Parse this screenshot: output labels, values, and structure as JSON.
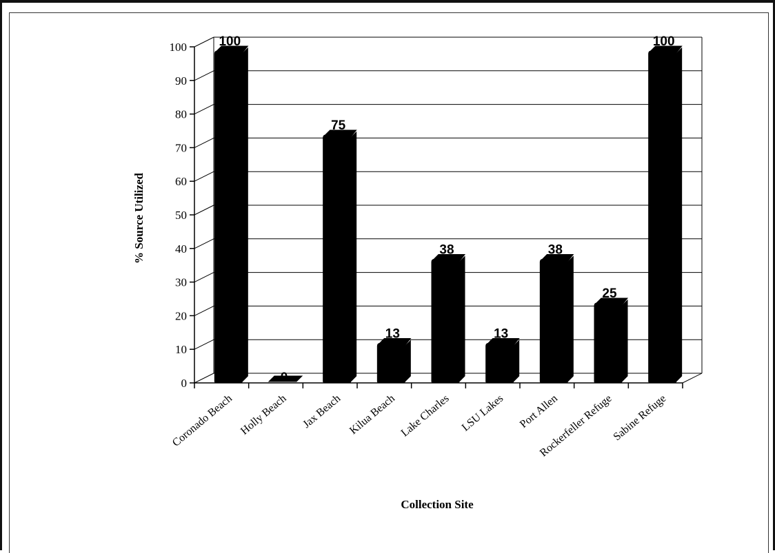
{
  "chart_data": {
    "type": "bar",
    "categories": [
      "Coronado Beach",
      "Holly Beach",
      "Jax Beach",
      "Kilua Beach",
      "Lake Charles",
      "LSU Lakes",
      "Port Allen",
      "Rockerfeller Refuge",
      "Sabine Refuge"
    ],
    "values": [
      100,
      0,
      75,
      13,
      38,
      13,
      38,
      25,
      100
    ],
    "xlabel": "Collection Site",
    "ylabel": "% Source Utilized",
    "ylim": [
      0,
      100
    ],
    "yticks": [
      0,
      10,
      20,
      30,
      40,
      50,
      60,
      70,
      80,
      90,
      100
    ],
    "grid": true,
    "style": "3d",
    "colors": {
      "bar": "#000000",
      "grid": "#000000",
      "background": "#ffffff"
    }
  }
}
